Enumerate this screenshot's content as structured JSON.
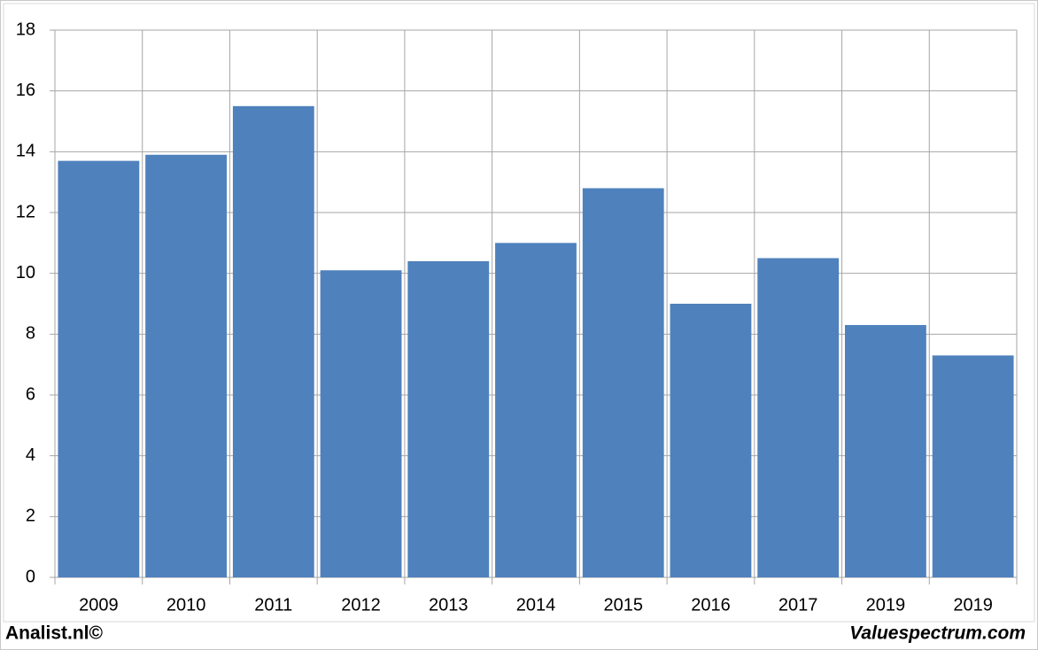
{
  "chart_data": {
    "type": "bar",
    "categories": [
      "2009",
      "2010",
      "2011",
      "2012",
      "2013",
      "2014",
      "2015",
      "2016",
      "2017",
      "2019",
      "2019"
    ],
    "values": [
      13.7,
      13.9,
      15.5,
      10.1,
      10.4,
      11.0,
      12.8,
      9.0,
      10.5,
      8.3,
      7.3
    ],
    "color": "#4f81bd",
    "ylim": [
      0,
      18
    ],
    "yticks": [
      0,
      2,
      4,
      6,
      8,
      10,
      12,
      14,
      16,
      18
    ],
    "grid": true,
    "footer_left": "Analist.nl©",
    "footer_right": "Valuespectrum.com"
  }
}
